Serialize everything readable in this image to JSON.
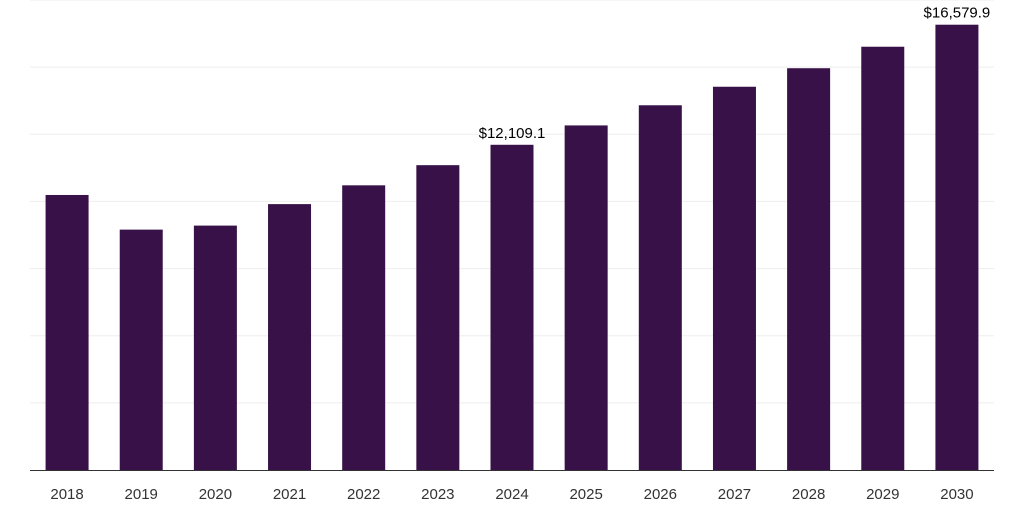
{
  "chart_data": {
    "type": "bar",
    "categories": [
      "2018",
      "2019",
      "2020",
      "2021",
      "2022",
      "2023",
      "2024",
      "2025",
      "2026",
      "2027",
      "2028",
      "2029",
      "2030"
    ],
    "values": [
      10240,
      8950,
      9100,
      9900,
      10600,
      11350,
      12109.1,
      12830,
      13580,
      14270,
      14960,
      15760,
      16579.9
    ],
    "data_labels": [
      "",
      "",
      "",
      "",
      "",
      "",
      "$12,109.1",
      "",
      "",
      "",
      "",
      "",
      "$16,579.9"
    ],
    "title": "",
    "xlabel": "",
    "ylabel": "",
    "ylim": [
      0,
      17500
    ],
    "grid": true,
    "bar_color": "#371147",
    "grid_color": "#eeeeee",
    "axis_color": "#333333"
  }
}
